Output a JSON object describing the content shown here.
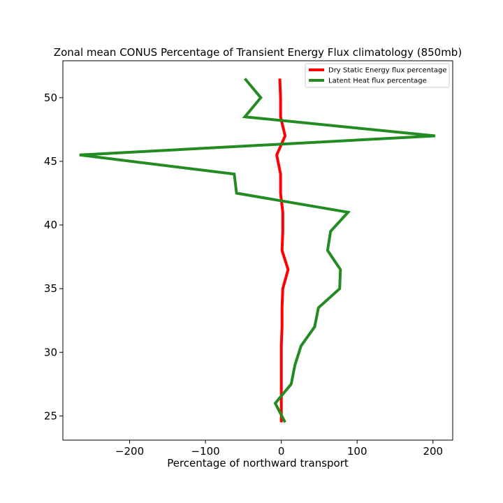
{
  "chart_data": {
    "type": "line",
    "title": "Zonal mean CONUS Percentage of Transient Energy Flux climatology (850mb)",
    "xlabel": "Percentage of northward transport",
    "ylabel": "",
    "xlim": [
      -288,
      226
    ],
    "ylim": [
      23.1,
      52.9
    ],
    "xticks": [
      -200,
      -100,
      0,
      100,
      200
    ],
    "xtick_labels": [
      "−200",
      "−100",
      "0",
      "100",
      "200"
    ],
    "yticks": [
      25,
      30,
      35,
      40,
      45,
      50
    ],
    "ytick_labels": [
      "25",
      "30",
      "35",
      "40",
      "45",
      "50"
    ],
    "grid": false,
    "legend_position": "top-right",
    "series": [
      {
        "name": "Dry Static Energy flux percentage",
        "color": "#ff0000",
        "points": [
          [
            0,
            24.5
          ],
          [
            0,
            25.5
          ],
          [
            0,
            26
          ],
          [
            0,
            27.5
          ],
          [
            0,
            28.5
          ],
          [
            0,
            30.5
          ],
          [
            1,
            32
          ],
          [
            1,
            33.5
          ],
          [
            2,
            35
          ],
          [
            9,
            36.5
          ],
          [
            1,
            38
          ],
          [
            2,
            39.5
          ],
          [
            2,
            41
          ],
          [
            -1,
            42.5
          ],
          [
            -1,
            44
          ],
          [
            -6,
            45.5
          ],
          [
            5,
            47
          ],
          [
            -1,
            48.5
          ],
          [
            -1,
            50
          ],
          [
            -2,
            51.5
          ]
        ]
      },
      {
        "name": "Latent Heat flux percentage",
        "color": "#228b22",
        "points": [
          [
            5,
            24.5
          ],
          [
            -8,
            26
          ],
          [
            13,
            27.5
          ],
          [
            18,
            29
          ],
          [
            26,
            30.5
          ],
          [
            44,
            32
          ],
          [
            49,
            33.5
          ],
          [
            77,
            35
          ],
          [
            78,
            36.5
          ],
          [
            61,
            38
          ],
          [
            65,
            39.5
          ],
          [
            88,
            41
          ],
          [
            -59,
            42.5
          ],
          [
            -62,
            44
          ],
          [
            -266,
            45.5
          ],
          [
            203,
            47
          ],
          [
            -48,
            48.5
          ],
          [
            -27,
            50
          ],
          [
            -48,
            51.5
          ]
        ]
      }
    ]
  }
}
